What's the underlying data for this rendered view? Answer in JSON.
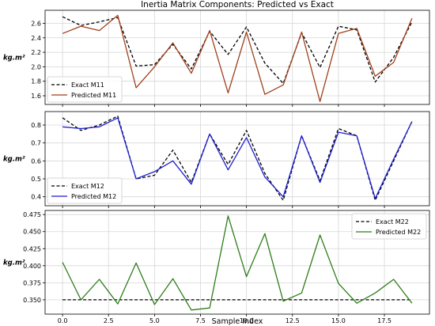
{
  "colors": {
    "exact": "#000000",
    "predicted_m11": "#a0401a",
    "predicted_m12": "#1f1fd0",
    "predicted_m22": "#2e7d1a",
    "grid": "#d6d6d6",
    "frame": "#000000"
  },
  "chart_data": {
    "type": "line",
    "title": "Inertia Matrix Components: Predicted vs Exact",
    "xlabel": "Sample Index",
    "x": [
      0,
      1,
      2,
      3,
      4,
      5,
      6,
      7,
      8,
      9,
      10,
      11,
      12,
      13,
      14,
      15,
      16,
      17,
      18,
      19
    ],
    "xlim": [
      -0.95,
      19.95
    ],
    "xticks": [
      0.0,
      2.5,
      5.0,
      7.5,
      10.0,
      12.5,
      15.0,
      17.5
    ],
    "xtick_labels": [
      "0.0",
      "2.5",
      "5.0",
      "7.5",
      "10.0",
      "12.5",
      "15.0",
      "17.5"
    ],
    "grid": true,
    "panels": [
      {
        "ylabel": "kg.m²",
        "ylim": [
          1.48,
          2.78
        ],
        "yticks": [
          1.6,
          1.8,
          2.0,
          2.2,
          2.4,
          2.6
        ],
        "ytick_labels": [
          "1.6",
          "1.8",
          "2.0",
          "2.2",
          "2.4",
          "2.6"
        ],
        "legend": "lower-left",
        "series": [
          {
            "name": "Exact M11",
            "style": "dashed",
            "color": "#000000",
            "values": [
              2.69,
              2.57,
              2.62,
              2.68,
              2.01,
              2.03,
              2.31,
              1.97,
              2.49,
              2.17,
              2.55,
              2.05,
              1.77,
              2.47,
              1.99,
              2.56,
              2.51,
              1.79,
              2.13,
              2.62
            ]
          },
          {
            "name": "Predicted M11",
            "style": "solid",
            "color": "#a0401a",
            "values": [
              2.46,
              2.56,
              2.5,
              2.71,
              1.71,
              2.0,
              2.33,
              1.91,
              2.5,
              1.64,
              2.48,
              1.62,
              1.75,
              2.48,
              1.52,
              2.46,
              2.53,
              1.87,
              2.06,
              2.67
            ]
          }
        ]
      },
      {
        "ylabel": "kg.m²",
        "ylim": [
          0.35,
          0.875
        ],
        "yticks": [
          0.4,
          0.5,
          0.6,
          0.7,
          0.8
        ],
        "ytick_labels": [
          "0.4",
          "0.5",
          "0.6",
          "0.7",
          "0.8"
        ],
        "legend": "lower-left",
        "series": [
          {
            "name": "Exact M12",
            "style": "dashed",
            "color": "#000000",
            "values": [
              0.84,
              0.77,
              0.8,
              0.85,
              0.5,
              0.52,
              0.66,
              0.48,
              0.75,
              0.58,
              0.77,
              0.53,
              0.38,
              0.74,
              0.49,
              0.78,
              0.74,
              0.38,
              0.6,
              0.82
            ]
          },
          {
            "name": "Predicted M12",
            "style": "solid",
            "color": "#1f1fd0",
            "values": [
              0.79,
              0.78,
              0.79,
              0.84,
              0.5,
              0.54,
              0.6,
              0.47,
              0.75,
              0.55,
              0.73,
              0.51,
              0.4,
              0.74,
              0.48,
              0.76,
              0.74,
              0.39,
              0.61,
              0.82
            ]
          }
        ]
      },
      {
        "ylabel": "kg.m²",
        "ylim": [
          0.329,
          0.481
        ],
        "yticks": [
          0.35,
          0.375,
          0.4,
          0.425,
          0.45,
          0.475
        ],
        "ytick_labels": [
          "0.350",
          "0.375",
          "0.400",
          "0.425",
          "0.450",
          "0.475"
        ],
        "legend": "upper-right",
        "series": [
          {
            "name": "Exact M22",
            "style": "dashed",
            "color": "#000000",
            "values": [
              0.35,
              0.35,
              0.35,
              0.35,
              0.35,
              0.35,
              0.35,
              0.35,
              0.35,
              0.35,
              0.35,
              0.35,
              0.35,
              0.35,
              0.35,
              0.35,
              0.35,
              0.35,
              0.35,
              0.35
            ]
          },
          {
            "name": "Predicted M22",
            "style": "solid",
            "color": "#2e7d1a",
            "values": [
              0.405,
              0.35,
              0.38,
              0.344,
              0.404,
              0.343,
              0.381,
              0.335,
              0.338,
              0.473,
              0.384,
              0.447,
              0.348,
              0.36,
              0.445,
              0.374,
              0.345,
              0.36,
              0.38,
              0.345
            ]
          }
        ]
      }
    ]
  }
}
